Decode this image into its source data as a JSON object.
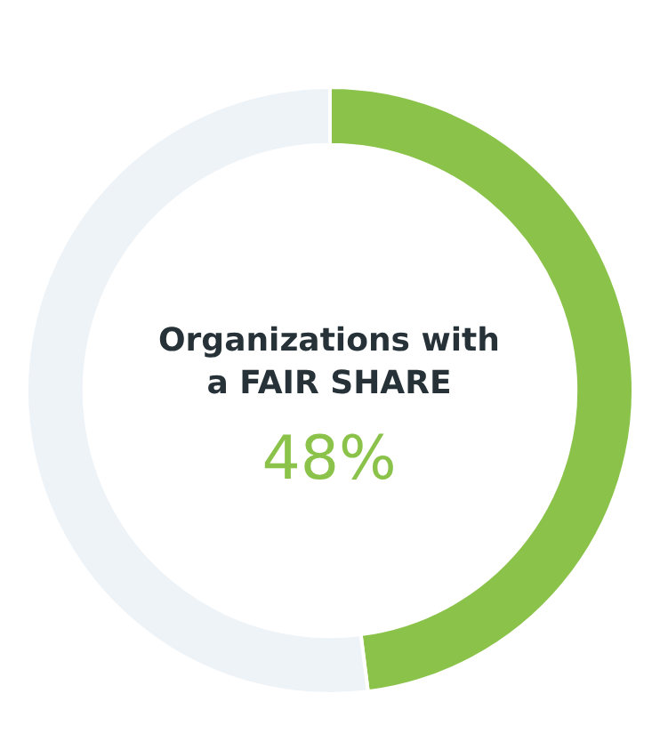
{
  "chart_data": {
    "type": "donut",
    "title": "Organizations with a FAIR SHARE",
    "categories": [
      null,
      null
    ],
    "values": [
      48,
      52
    ],
    "colors": [
      "#8bc34a",
      "#eef3f8"
    ],
    "value_labels": [
      "48%",
      null
    ]
  }
}
